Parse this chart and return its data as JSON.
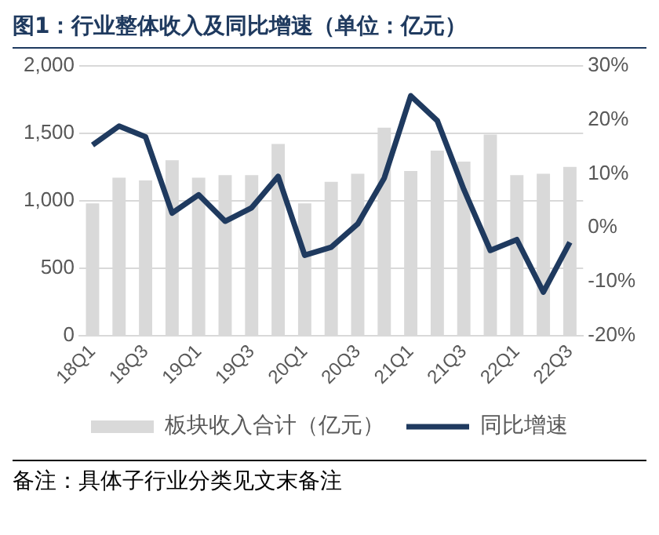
{
  "chart_data": {
    "type": "bar",
    "title": "图1：行业整体收入及同比增速（单位：亿元）",
    "categories": [
      "18Q1",
      null,
      "18Q3",
      null,
      "19Q1",
      null,
      "19Q3",
      null,
      "20Q1",
      null,
      "20Q3",
      null,
      "21Q1",
      null,
      "21Q3",
      null,
      "22Q1",
      null,
      "22Q3"
    ],
    "series": [
      {
        "name": "板块收入合计（亿元）",
        "color": "#d9d9d9",
        "values": [
          980,
          1170,
          1150,
          1300,
          1170,
          1190,
          1190,
          1420,
          980,
          1140,
          1200,
          1540,
          1220,
          1370,
          1290,
          1490,
          1190,
          1200,
          1250
        ]
      },
      {
        "name": "同比增速",
        "type": "line",
        "axis": "y2",
        "color": "#1f3a5f",
        "values": [
          15.3,
          18.8,
          16.8,
          2.7,
          6.1,
          1.2,
          3.7,
          9.5,
          -5.1,
          -3.6,
          0.7,
          9.2,
          24.4,
          19.8,
          7.1,
          -4.2,
          -2.2,
          -11.9,
          -2.7
        ]
      }
    ],
    "ylim": [
      0,
      2000
    ],
    "yticks": [
      0,
      {
        "value": 500,
        "label": "500"
      },
      {
        "value": 1000,
        "label": "1,000"
      },
      {
        "value": 1500,
        "label": "1,500"
      },
      {
        "value": 2000,
        "label": "2,000"
      }
    ],
    "y2lim": [
      -20,
      30
    ],
    "y2ticks": [
      {
        "value": -20,
        "label": "-20%"
      },
      {
        "value": -10,
        "label": "-10%"
      },
      {
        "value": 0,
        "label": "0%"
      },
      {
        "value": 10,
        "label": "10%"
      },
      {
        "value": 20,
        "label": "20%"
      },
      {
        "value": 30,
        "label": "30%"
      }
    ],
    "grid": "y",
    "legend": "bottom",
    "marker": "none",
    "annotations": [
      "备注：具体子行业分类见文末备注"
    ]
  }
}
